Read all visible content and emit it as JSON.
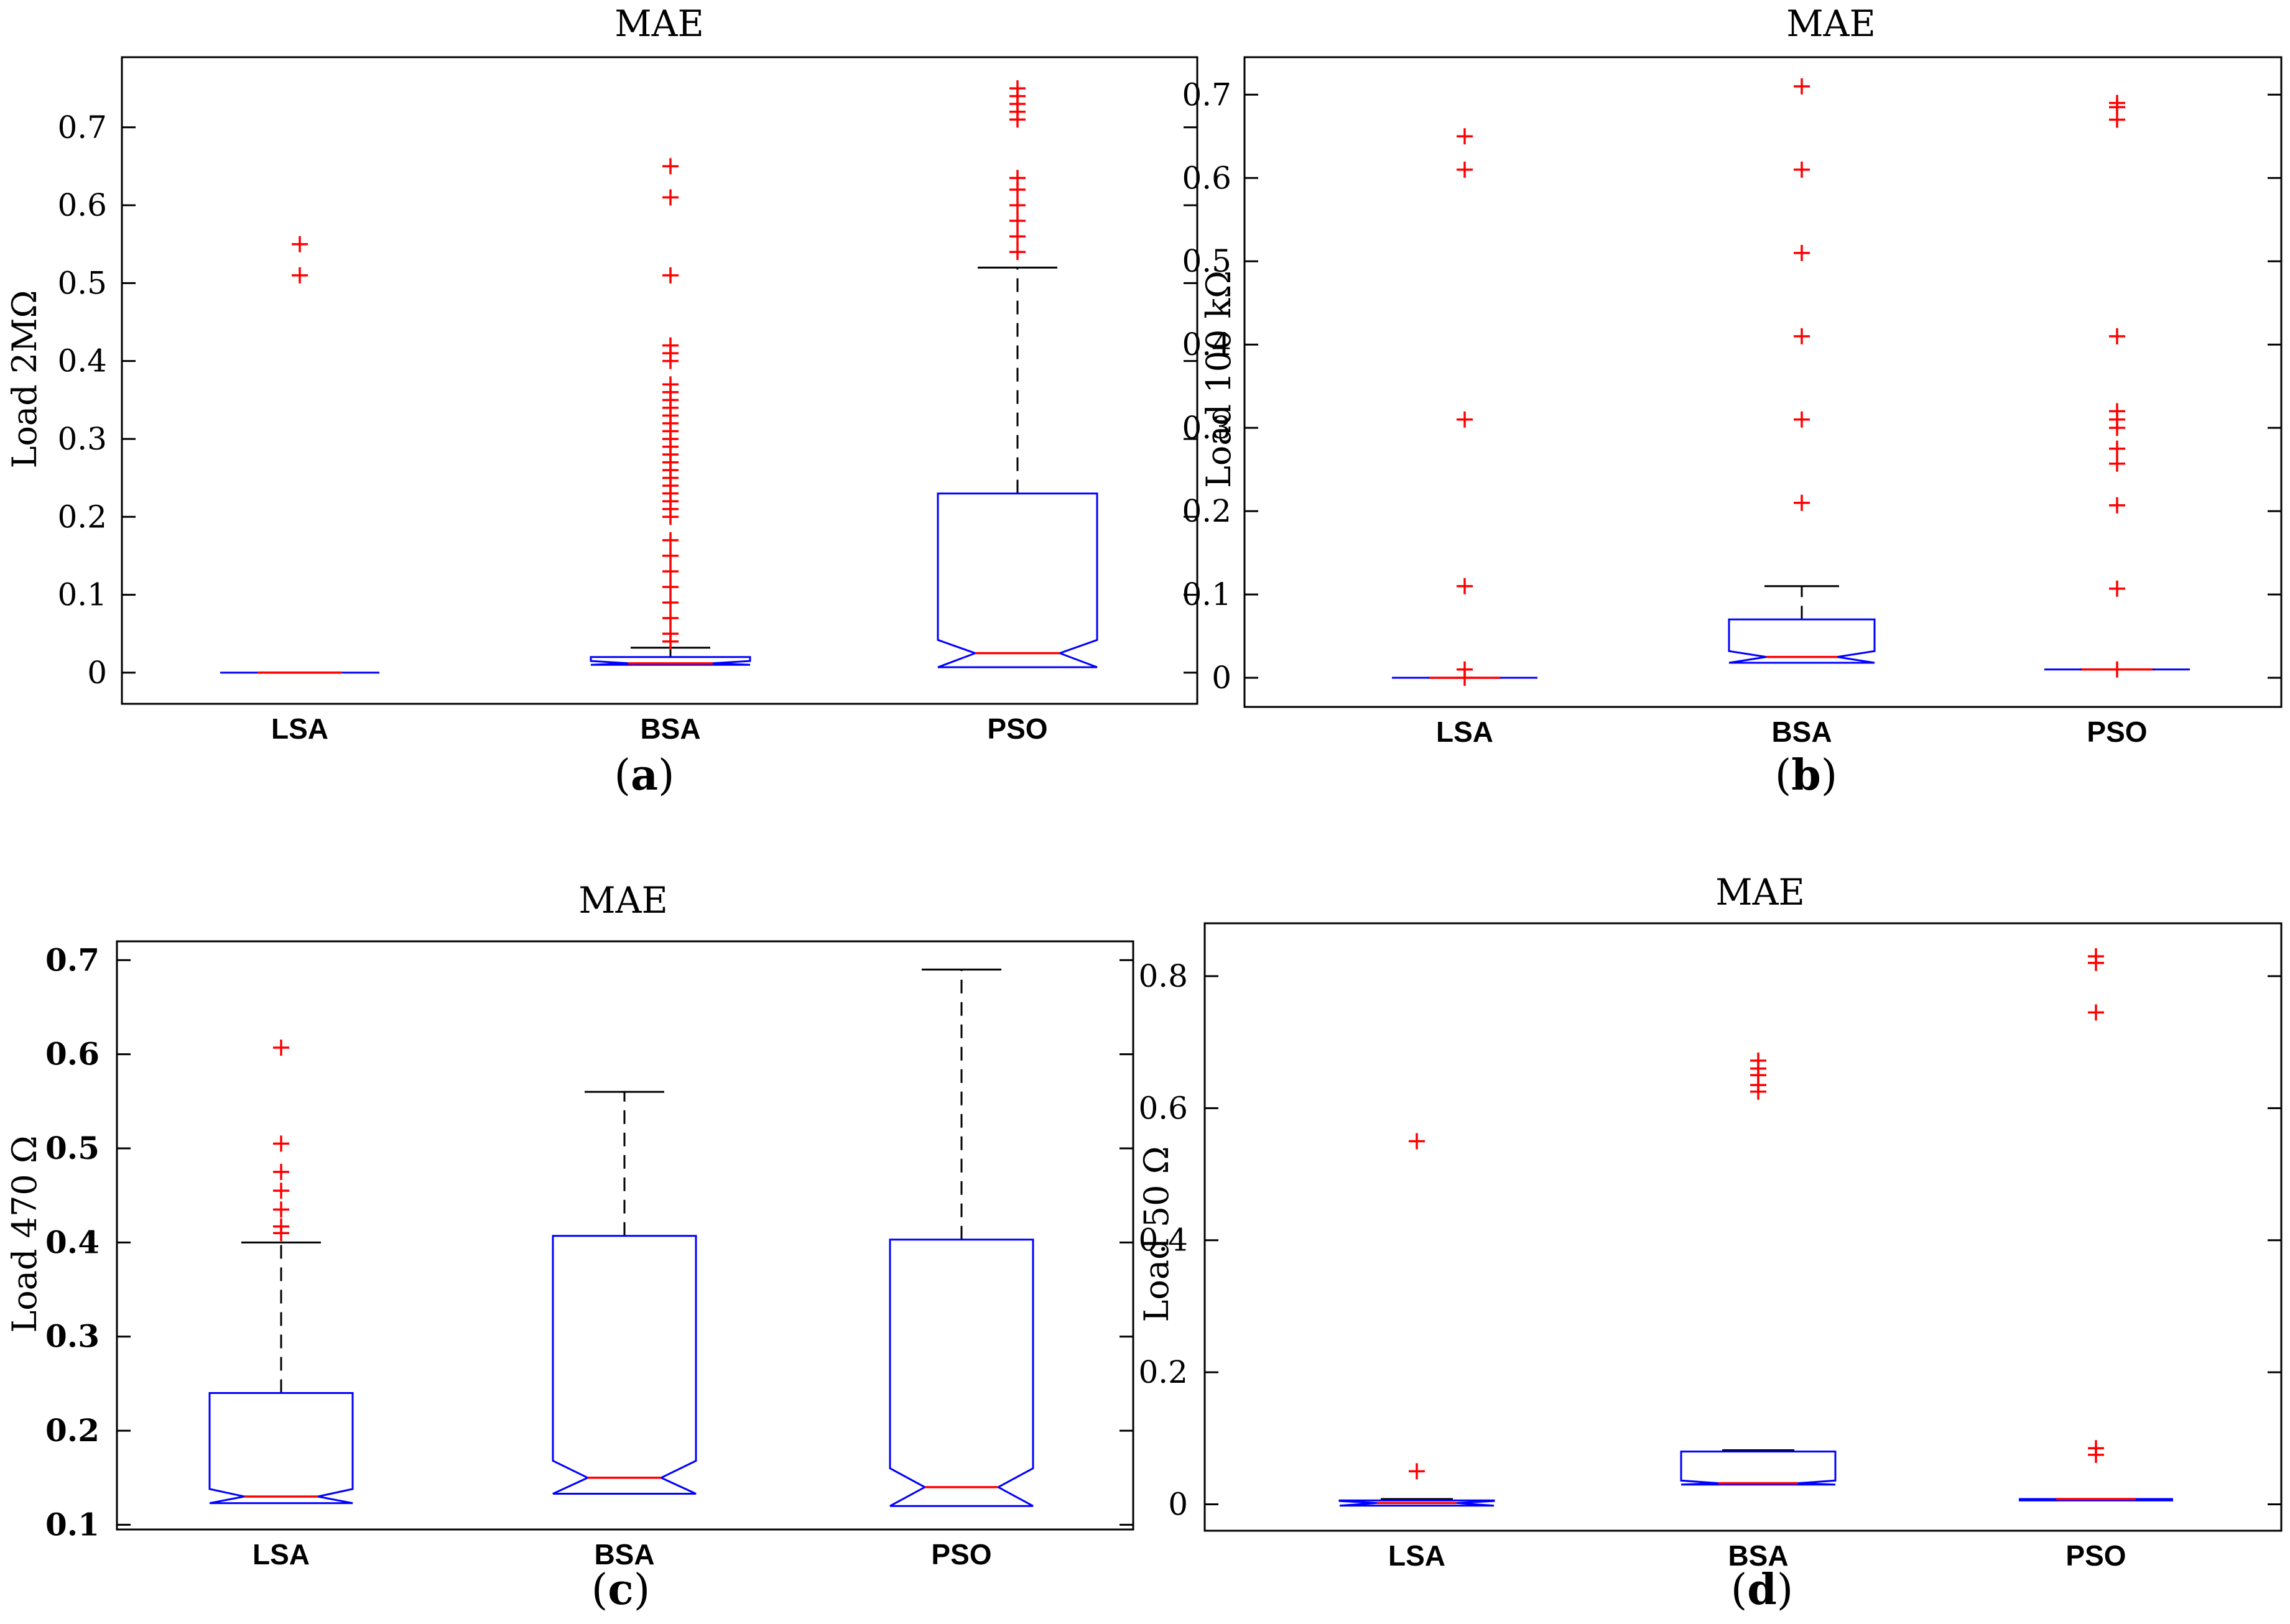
{
  "figure": {
    "colors": {
      "box": "#0000ff",
      "median": "#ff0000",
      "outlier": "#ff0000",
      "whisker": "#000000",
      "axis": "#000000"
    }
  },
  "chart_data": [
    {
      "id": "a",
      "type": "boxplot",
      "panel_label": "a",
      "title": "MAE",
      "ylabel": "Load 2MΩ",
      "ylim": [
        -0.04,
        0.79
      ],
      "yticks": [
        0,
        0.1,
        0.2,
        0.3,
        0.4,
        0.5,
        0.6,
        0.7
      ],
      "ytick_labels": [
        "0",
        "0.1",
        "0.2",
        "0.3",
        "0.4",
        "0.5",
        "0.6",
        "0.7"
      ],
      "ytick_bold": false,
      "categories": [
        "LSA",
        "BSA",
        "PSO"
      ],
      "boxes": [
        {
          "name": "LSA",
          "q1": 0.0,
          "median": 0.0,
          "q3": 0.0,
          "whisker_low": 0.0,
          "whisker_high": 0.0,
          "notch_low": 0.0,
          "notch_high": 0.0,
          "outliers": [
            0.51,
            0.55
          ]
        },
        {
          "name": "BSA",
          "q1": 0.01,
          "median": 0.012,
          "q3": 0.02,
          "whisker_low": 0.01,
          "whisker_high": 0.032,
          "notch_low": 0.01,
          "notch_high": 0.015,
          "outliers": [
            0.04,
            0.05,
            0.07,
            0.09,
            0.11,
            0.13,
            0.15,
            0.17,
            0.2,
            0.21,
            0.22,
            0.23,
            0.24,
            0.25,
            0.26,
            0.27,
            0.28,
            0.29,
            0.3,
            0.31,
            0.32,
            0.33,
            0.34,
            0.35,
            0.36,
            0.37,
            0.4,
            0.41,
            0.42,
            0.51,
            0.61,
            0.65
          ]
        },
        {
          "name": "PSO",
          "q1": 0.007,
          "median": 0.025,
          "q3": 0.23,
          "whisker_low": 0.007,
          "whisker_high": 0.52,
          "notch_low": 0.007,
          "notch_high": 0.042,
          "outliers": [
            0.54,
            0.56,
            0.58,
            0.6,
            0.62,
            0.635,
            0.71,
            0.72,
            0.73,
            0.74,
            0.75
          ]
        }
      ]
    },
    {
      "id": "b",
      "type": "boxplot",
      "panel_label": "b",
      "title": "MAE",
      "ylabel": "Load 100 kΩ",
      "ylim": [
        -0.035,
        0.745
      ],
      "yticks": [
        0,
        0.1,
        0.2,
        0.3,
        0.4,
        0.5,
        0.6,
        0.7
      ],
      "ytick_labels": [
        "0",
        "0.1",
        "0.2",
        "0.3",
        "0.4",
        "0.5",
        "0.6",
        "0.7"
      ],
      "ytick_bold": false,
      "categories": [
        "LSA",
        "BSA",
        "PSO"
      ],
      "boxes": [
        {
          "name": "LSA",
          "q1": 0.0,
          "median": 0.0,
          "q3": 0.0,
          "whisker_low": 0.0,
          "whisker_high": 0.0,
          "notch_low": 0.0,
          "notch_high": 0.0,
          "outliers": [
            0.0,
            0.01,
            0.11,
            0.31,
            0.61,
            0.65
          ]
        },
        {
          "name": "BSA",
          "q1": 0.018,
          "median": 0.025,
          "q3": 0.07,
          "whisker_low": 0.018,
          "whisker_high": 0.11,
          "notch_low": 0.018,
          "notch_high": 0.032,
          "outliers": [
            0.21,
            0.31,
            0.41,
            0.51,
            0.61,
            0.71
          ]
        },
        {
          "name": "PSO",
          "q1": 0.01,
          "median": 0.01,
          "q3": 0.01,
          "whisker_low": 0.01,
          "whisker_high": 0.01,
          "notch_low": 0.01,
          "notch_high": 0.01,
          "outliers": [
            0.01,
            0.107,
            0.207,
            0.257,
            0.275,
            0.3,
            0.31,
            0.32,
            0.41,
            0.67,
            0.685,
            0.69
          ]
        }
      ]
    },
    {
      "id": "c",
      "type": "boxplot",
      "panel_label": "c",
      "title": "MAE",
      "ylabel": "Load 470 Ω",
      "ylim": [
        0.095,
        0.72
      ],
      "yticks": [
        0.1,
        0.2,
        0.3,
        0.4,
        0.5,
        0.6,
        0.7
      ],
      "ytick_labels": [
        "0.1",
        "0.2",
        "0.3",
        "0.4",
        "0.5",
        "0.6",
        "0.7"
      ],
      "ytick_bold": true,
      "categories": [
        "LSA",
        "BSA",
        "PSO"
      ],
      "boxes": [
        {
          "name": "LSA",
          "q1": 0.123,
          "median": 0.13,
          "q3": 0.24,
          "whisker_low": 0.123,
          "whisker_high": 0.4,
          "notch_low": 0.123,
          "notch_high": 0.138,
          "outliers": [
            0.41,
            0.417,
            0.435,
            0.455,
            0.475,
            0.505,
            0.607
          ]
        },
        {
          "name": "BSA",
          "q1": 0.133,
          "median": 0.15,
          "q3": 0.407,
          "whisker_low": 0.133,
          "whisker_high": 0.56,
          "notch_low": 0.133,
          "notch_high": 0.168,
          "outliers": []
        },
        {
          "name": "PSO",
          "q1": 0.12,
          "median": 0.14,
          "q3": 0.403,
          "whisker_low": 0.12,
          "whisker_high": 0.69,
          "notch_low": 0.12,
          "notch_high": 0.16,
          "outliers": []
        }
      ]
    },
    {
      "id": "d",
      "type": "boxplot",
      "panel_label": "d",
      "title": "MAE",
      "ylabel": "Load 50 Ω",
      "ylim": [
        -0.04,
        0.88
      ],
      "yticks": [
        0,
        0.2,
        0.4,
        0.6,
        0.8
      ],
      "ytick_labels": [
        "0",
        "0.2",
        "0.4",
        "0.6",
        "0.8"
      ],
      "ytick_bold": false,
      "categories": [
        "LSA",
        "BSA",
        "PSO"
      ],
      "boxes": [
        {
          "name": "LSA",
          "q1": -0.002,
          "median": 0.002,
          "q3": 0.006,
          "whisker_low": -0.002,
          "whisker_high": 0.008,
          "notch_low": -0.002,
          "notch_high": 0.005,
          "outliers": [
            0.05,
            0.55
          ]
        },
        {
          "name": "BSA",
          "q1": 0.03,
          "median": 0.032,
          "q3": 0.08,
          "whisker_low": 0.03,
          "whisker_high": 0.082,
          "notch_low": 0.03,
          "notch_high": 0.036,
          "outliers": [
            0.625,
            0.635,
            0.65,
            0.66,
            0.672
          ]
        },
        {
          "name": "PSO",
          "q1": 0.006,
          "median": 0.008,
          "q3": 0.008,
          "whisker_low": 0.006,
          "whisker_high": 0.008,
          "notch_low": 0.006,
          "notch_high": 0.008,
          "outliers": [
            0.075,
            0.085,
            0.745,
            0.82,
            0.83
          ]
        }
      ]
    }
  ]
}
